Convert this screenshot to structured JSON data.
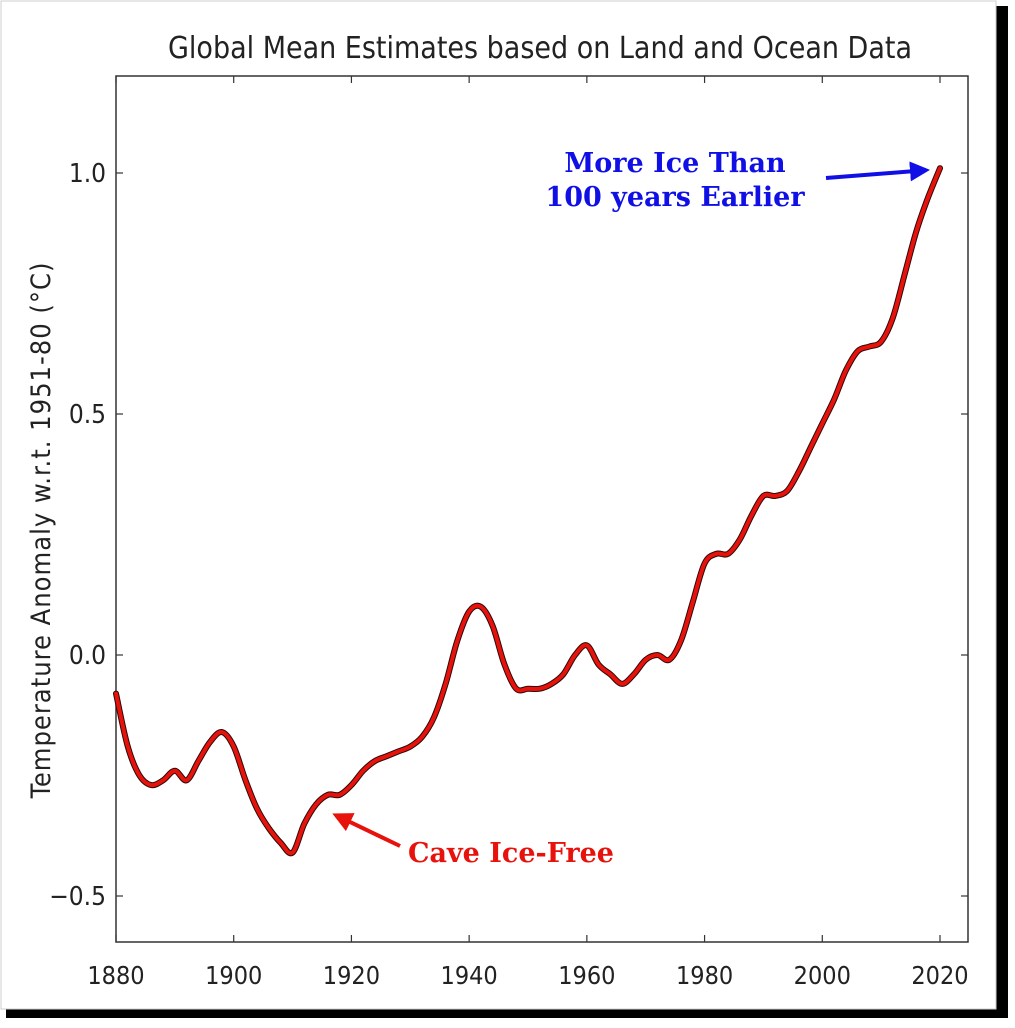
{
  "chart_data": {
    "type": "line",
    "title": "Global Mean Estimates based on Land and Ocean Data",
    "xlabel": "",
    "ylabel": "Temperature Anomaly w.r.t. 1951-80 (°C)",
    "xlim": [
      1880,
      2025
    ],
    "ylim": [
      -0.6,
      1.2
    ],
    "xticks": [
      1880,
      1900,
      1920,
      1940,
      1960,
      1980,
      2000,
      2020
    ],
    "yticks": [
      -0.5,
      0.0,
      0.5,
      1.0
    ],
    "ytick_labels": [
      "−0.5",
      "0.0",
      "0.5",
      "1.0"
    ],
    "grid": false,
    "series": [
      {
        "color": "#e8120c",
        "x": [
          1880,
          1882,
          1884,
          1886,
          1888,
          1890,
          1892,
          1894,
          1896,
          1898,
          1900,
          1902,
          1904,
          1906,
          1908,
          1910,
          1912,
          1914,
          1916,
          1918,
          1920,
          1922,
          1924,
          1926,
          1928,
          1930,
          1932,
          1934,
          1936,
          1938,
          1940,
          1942,
          1944,
          1946,
          1948,
          1950,
          1952,
          1954,
          1956,
          1958,
          1960,
          1962,
          1964,
          1966,
          1968,
          1970,
          1972,
          1974,
          1976,
          1978,
          1980,
          1982,
          1984,
          1986,
          1988,
          1990,
          1992,
          1994,
          1996,
          1998,
          2000,
          2002,
          2004,
          2006,
          2008,
          2010,
          2012,
          2014,
          2016,
          2018,
          2020
        ],
        "y": [
          -0.08,
          -0.19,
          -0.25,
          -0.27,
          -0.26,
          -0.24,
          -0.26,
          -0.22,
          -0.18,
          -0.16,
          -0.19,
          -0.26,
          -0.32,
          -0.36,
          -0.39,
          -0.41,
          -0.35,
          -0.31,
          -0.29,
          -0.29,
          -0.27,
          -0.24,
          -0.22,
          -0.21,
          -0.2,
          -0.19,
          -0.17,
          -0.13,
          -0.06,
          0.03,
          0.09,
          0.1,
          0.06,
          -0.02,
          -0.07,
          -0.07,
          -0.07,
          -0.06,
          -0.04,
          0.0,
          0.02,
          -0.02,
          -0.04,
          -0.06,
          -0.04,
          -0.01,
          0.0,
          -0.01,
          0.03,
          0.11,
          0.19,
          0.21,
          0.21,
          0.24,
          0.29,
          0.33,
          0.33,
          0.34,
          0.38,
          0.43,
          0.48,
          0.53,
          0.59,
          0.63,
          0.64,
          0.65,
          0.7,
          0.79,
          0.88,
          0.95,
          1.01
        ]
      }
    ],
    "annotations": [
      {
        "text_lines": [
          "More Ice Than",
          "100 years Earlier"
        ],
        "color": "#1010e6",
        "target": [
          2020,
          1.01
        ]
      },
      {
        "text_lines": [
          "Cave Ice-Free"
        ],
        "color": "#e8120c",
        "target": [
          1916,
          -0.32
        ]
      }
    ]
  }
}
